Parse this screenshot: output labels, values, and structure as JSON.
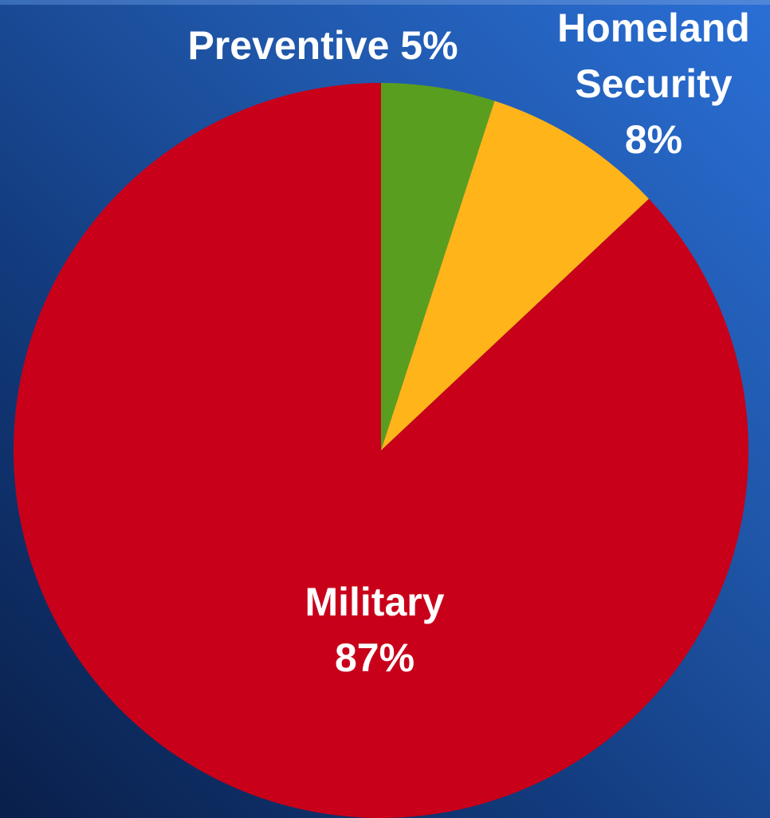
{
  "chart_data": {
    "type": "pie",
    "slices": [
      {
        "label": "Preventive",
        "value": 5,
        "display": "5%",
        "color": "#5a9e1f"
      },
      {
        "label": "Homeland Security",
        "value": 8,
        "display": "8%",
        "color": "#ffb41a"
      },
      {
        "label": "Military",
        "value": 87,
        "display": "87%",
        "color": "#c8001a"
      }
    ],
    "start": "12 o'clock",
    "direction": "clockwise"
  },
  "labels": {
    "preventive": "Preventive 5%",
    "homeland_line1": "Homeland",
    "homeland_line2": "Security",
    "homeland_line3": "8%",
    "military_line1": "Military",
    "military_line2": "87%"
  },
  "colors": {
    "background_light": "#2a6fd6",
    "background_dark": "#0a1f4a",
    "label_text": "#ffffff"
  }
}
